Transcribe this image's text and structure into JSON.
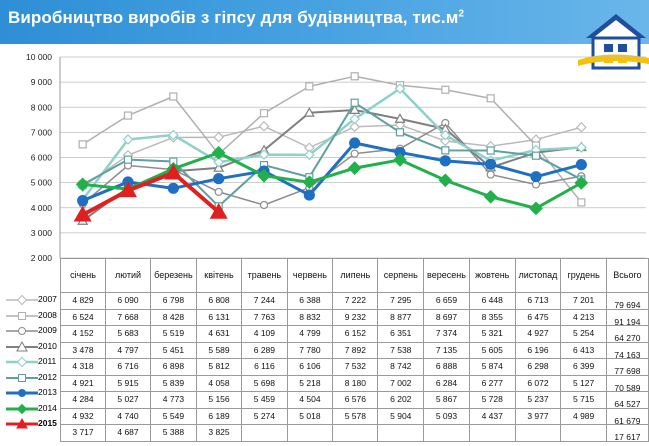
{
  "title": "Виробництво виробів з гіпсу для будівництва, тис.м",
  "title_sup": "2",
  "total_label": "Всього",
  "chart_data": {
    "type": "line",
    "categories": [
      "січень",
      "лютий",
      "березень",
      "квітень",
      "травень",
      "червень",
      "липень",
      "серпень",
      "вересень",
      "жовтень",
      "листопад",
      "грудень"
    ],
    "ylim": [
      2000,
      10000
    ],
    "yticks": [
      "2 000",
      "3 000",
      "4 000",
      "5 000",
      "6 000",
      "7 000",
      "8 000",
      "9 000",
      "10 000"
    ],
    "grid": true,
    "legend": "table-left",
    "series": [
      {
        "name": "2007",
        "color": "#b9b9b9",
        "marker": "diamond",
        "width": 1.5,
        "values": [
          4829,
          6090,
          6798,
          6808,
          7244,
          6388,
          7222,
          7295,
          6659,
          6448,
          6713,
          7201
        ],
        "labels": [
          "4 829",
          "6 090",
          "6 798",
          "6 808",
          "7 244",
          "6 388",
          "7 222",
          "7 295",
          "6 659",
          "6 448",
          "6 713",
          "7 201"
        ],
        "total": "79 694"
      },
      {
        "name": "2008",
        "color": "#b0b0b0",
        "marker": "square",
        "width": 1.5,
        "values": [
          6524,
          7668,
          8428,
          6131,
          7763,
          8832,
          9232,
          8877,
          8697,
          8355,
          6475,
          4213
        ],
        "labels": [
          "6 524",
          "7 668",
          "8 428",
          "6 131",
          "7 763",
          "8 832",
          "9 232",
          "8 877",
          "8 697",
          "8 355",
          "6 475",
          "4 213"
        ],
        "total": "91 194"
      },
      {
        "name": "2009",
        "color": "#8c8c8c",
        "marker": "circle",
        "width": 1.5,
        "values": [
          4152,
          5683,
          5519,
          4631,
          4109,
          4799,
          6152,
          6351,
          7374,
          5321,
          4927,
          5254
        ],
        "labels": [
          "4 152",
          "5 683",
          "5 519",
          "4 631",
          "4 109",
          "4 799",
          "6 152",
          "6 351",
          "7 374",
          "5 321",
          "4 927",
          "5 254"
        ],
        "total": "64 270"
      },
      {
        "name": "2010",
        "color": "#7f7f7f",
        "marker": "triangle",
        "width": 2,
        "values": [
          3478,
          4797,
          5451,
          5589,
          6289,
          7780,
          7892,
          7538,
          7135,
          5605,
          6196,
          6413
        ],
        "labels": [
          "3 478",
          "4 797",
          "5 451",
          "5 589",
          "6 289",
          "7 780",
          "7 892",
          "7 538",
          "7 135",
          "5 605",
          "6 196",
          "6 413"
        ],
        "total": "74 163"
      },
      {
        "name": "2011",
        "color": "#8fd0c8",
        "marker": "diamond",
        "width": 2.5,
        "values": [
          4318,
          6716,
          6898,
          5812,
          6116,
          6106,
          7532,
          8742,
          6888,
          5874,
          6298,
          6399
        ],
        "labels": [
          "4 318",
          "6 716",
          "6 898",
          "5 812",
          "6 116",
          "6 106",
          "7 532",
          "8 742",
          "6 888",
          "5 874",
          "6 298",
          "6 399"
        ],
        "total": "77 698"
      },
      {
        "name": "2012",
        "color": "#5ea0a0",
        "marker": "square",
        "width": 2,
        "values": [
          4921,
          5915,
          5839,
          4058,
          5698,
          5218,
          8180,
          7002,
          6284,
          6277,
          6072,
          5127
        ],
        "labels": [
          "4 921",
          "5 915",
          "5 839",
          "4 058",
          "5 698",
          "5 218",
          "8 180",
          "7 002",
          "6 284",
          "6 277",
          "6 072",
          "5 127"
        ],
        "total": "70 589"
      },
      {
        "name": "2013",
        "color": "#1f6fc2",
        "marker": "circle",
        "width": 3,
        "values": [
          4284,
          5027,
          4773,
          5156,
          5459,
          4504,
          6576,
          6202,
          5867,
          5728,
          5237,
          5715
        ],
        "labels": [
          "4 284",
          "5 027",
          "4 773",
          "5 156",
          "5 459",
          "4 504",
          "6 576",
          "6 202",
          "5 867",
          "5 728",
          "5 237",
          "5 715"
        ],
        "total": "64 527"
      },
      {
        "name": "2014",
        "color": "#22b04a",
        "marker": "diamond",
        "width": 3,
        "values": [
          4932,
          4740,
          5549,
          6189,
          5274,
          5018,
          5578,
          5904,
          5093,
          4437,
          3977,
          4989
        ],
        "labels": [
          "4 932",
          "4 740",
          "5 549",
          "6 189",
          "5 274",
          "5 018",
          "5 578",
          "5 904",
          "5 093",
          "4 437",
          "3 977",
          "4 989"
        ],
        "total": "61 679"
      },
      {
        "name": "2015",
        "color": "#e02020",
        "marker": "triangle",
        "width": 4,
        "values": [
          3717,
          4687,
          5388,
          3825,
          null,
          null,
          null,
          null,
          null,
          null,
          null,
          null
        ],
        "labels": [
          "3 717",
          "4 687",
          "5 388",
          "3 825",
          "",
          "",
          "",
          "",
          "",
          "",
          "",
          ""
        ],
        "total": "17 617"
      }
    ]
  }
}
